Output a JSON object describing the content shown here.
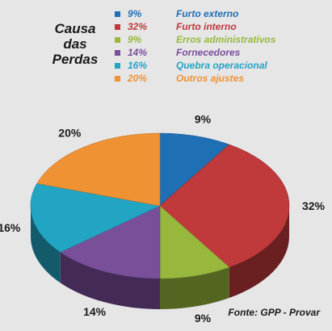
{
  "chart_data": {
    "type": "pie",
    "title": [
      "Causa",
      "das",
      "Perdas"
    ],
    "slices": [
      {
        "label": "Furto externo",
        "value": 9,
        "display": "9%",
        "color": "#1f6fb5"
      },
      {
        "label": "Furto interno",
        "value": 32,
        "display": "32%",
        "color": "#c0393b"
      },
      {
        "label": "Erros administrativos",
        "value": 9,
        "display": "9%",
        "color": "#98b83d"
      },
      {
        "label": "Fornecedores",
        "value": 14,
        "display": "14%",
        "color": "#7a4f9a"
      },
      {
        "label": "Quebra operacional",
        "value": 16,
        "display": "16%",
        "color": "#22a4c3"
      },
      {
        "label": "Outros ajustes",
        "value": 20,
        "display": "20%",
        "color": "#ef9234"
      }
    ],
    "legend_position": "top",
    "source": "Fonte: GPP - Provar",
    "style": "3d"
  }
}
